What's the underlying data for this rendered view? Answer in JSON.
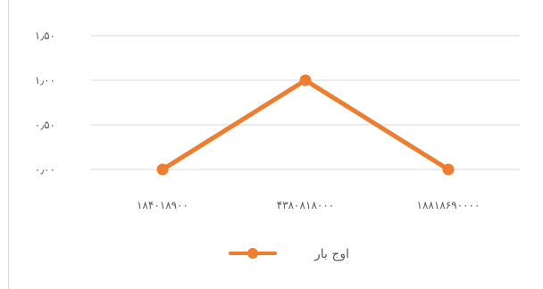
{
  "chart_data": {
    "type": "line",
    "categories": [
      "۱۸۴۰۱۸۹۰۰",
      "۴۳۸۰۸۱۸۰۰۰",
      "۱۸۸۱۸۶۹۰۰۰۰"
    ],
    "series": [
      {
        "name": "اوج بار",
        "values": [
          0.0,
          1.0,
          0.0
        ],
        "color": "#ED7D31"
      }
    ],
    "yticks": [
      {
        "value": 0.0,
        "label": "۰٫۰۰"
      },
      {
        "value": 0.5,
        "label": "۰٫۵۰"
      },
      {
        "value": 1.0,
        "label": "۱٫۰۰"
      },
      {
        "value": 1.5,
        "label": "۱٫۵۰"
      }
    ],
    "ylim": [
      0,
      1.5
    ],
    "grid": true,
    "legend_position": "bottom",
    "title": "",
    "xlabel": "",
    "ylabel": ""
  }
}
